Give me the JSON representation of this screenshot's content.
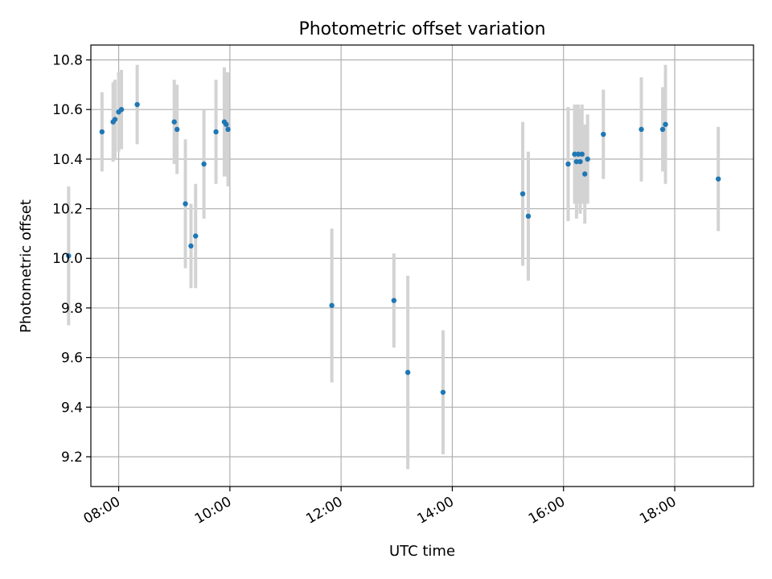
{
  "chart_data": {
    "type": "scatter",
    "title": "Photometric offset variation",
    "xlabel": "UTC time",
    "ylabel": "Photometric offset",
    "xlim": [
      "07:30",
      "19:25"
    ],
    "ylim": [
      9.08,
      10.86
    ],
    "grid": true,
    "x_ticks": [
      "08:00",
      "10:00",
      "12:00",
      "14:00",
      "16:00",
      "18:00"
    ],
    "y_ticks": [
      "9.2",
      "9.4",
      "9.6",
      "9.8",
      "10.0",
      "10.2",
      "10.4",
      "10.6",
      "10.8"
    ],
    "colors": {
      "point": "#1f77b4",
      "errorbar": "#d3d3d3",
      "grid": "#b0b0b0"
    },
    "points": [
      {
        "x": "07:06",
        "y": 10.01,
        "err": 0.28
      },
      {
        "x": "07:42",
        "y": 10.51,
        "err": 0.16
      },
      {
        "x": "07:54",
        "y": 10.55,
        "err": 0.16
      },
      {
        "x": "07:56",
        "y": 10.56,
        "err": 0.16
      },
      {
        "x": "08:00",
        "y": 10.59,
        "err": 0.16
      },
      {
        "x": "08:03",
        "y": 10.6,
        "err": 0.16
      },
      {
        "x": "08:20",
        "y": 10.62,
        "err": 0.16
      },
      {
        "x": "09:00",
        "y": 10.55,
        "err": 0.17
      },
      {
        "x": "09:03",
        "y": 10.52,
        "err": 0.18
      },
      {
        "x": "09:12",
        "y": 10.22,
        "err": 0.26
      },
      {
        "x": "09:18",
        "y": 10.05,
        "err": 0.17
      },
      {
        "x": "09:23",
        "y": 10.09,
        "err": 0.21
      },
      {
        "x": "09:32",
        "y": 10.38,
        "err": 0.22
      },
      {
        "x": "09:45",
        "y": 10.51,
        "err": 0.21
      },
      {
        "x": "09:54",
        "y": 10.55,
        "err": 0.22
      },
      {
        "x": "09:56",
        "y": 10.54,
        "err": 0.21
      },
      {
        "x": "09:58",
        "y": 10.52,
        "err": 0.23
      },
      {
        "x": "11:50",
        "y": 9.81,
        "err": 0.31
      },
      {
        "x": "12:57",
        "y": 9.83,
        "err": 0.19
      },
      {
        "x": "13:12",
        "y": 9.54,
        "err": 0.39
      },
      {
        "x": "13:50",
        "y": 9.46,
        "err": 0.25
      },
      {
        "x": "15:16",
        "y": 10.26,
        "err": 0.29
      },
      {
        "x": "15:22",
        "y": 10.17,
        "err": 0.26
      },
      {
        "x": "16:05",
        "y": 10.38,
        "err": 0.23
      },
      {
        "x": "16:12",
        "y": 10.42,
        "err": 0.2
      },
      {
        "x": "16:14",
        "y": 10.39,
        "err": 0.23
      },
      {
        "x": "16:16",
        "y": 10.42,
        "err": 0.2
      },
      {
        "x": "16:18",
        "y": 10.39,
        "err": 0.21
      },
      {
        "x": "16:20",
        "y": 10.42,
        "err": 0.2
      },
      {
        "x": "16:23",
        "y": 10.34,
        "err": 0.2
      },
      {
        "x": "16:26",
        "y": 10.4,
        "err": 0.18
      },
      {
        "x": "16:43",
        "y": 10.5,
        "err": 0.18
      },
      {
        "x": "17:24",
        "y": 10.52,
        "err": 0.21
      },
      {
        "x": "17:47",
        "y": 10.52,
        "err": 0.17
      },
      {
        "x": "17:50",
        "y": 10.54,
        "err": 0.24
      },
      {
        "x": "18:47",
        "y": 10.32,
        "err": 0.21
      }
    ]
  }
}
